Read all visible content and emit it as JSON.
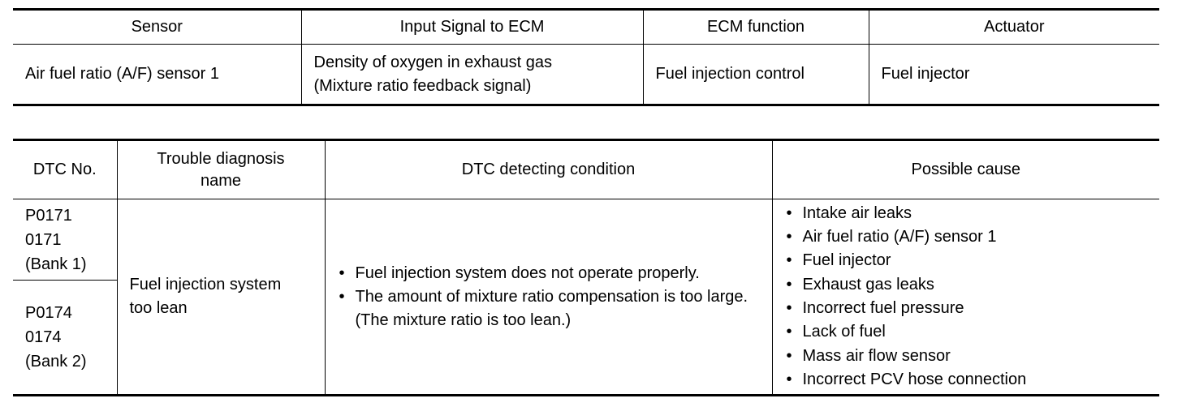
{
  "signal_table": {
    "headers": [
      "Sensor",
      "Input Signal to ECM",
      "ECM function",
      "Actuator"
    ],
    "row": {
      "sensor": "Air fuel ratio (A/F) sensor 1",
      "input_signal_line1": "Density of oxygen in exhaust gas",
      "input_signal_line2": "(Mixture ratio feedback signal)",
      "ecm_function": "Fuel injection control",
      "actuator": "Fuel injector"
    }
  },
  "dtc_table": {
    "headers": {
      "dtc_no": "DTC No.",
      "name_line1": "Trouble diagnosis",
      "name_line2": "name",
      "condition": "DTC detecting condition",
      "cause": "Possible cause"
    },
    "bank1": {
      "code1": "P0171",
      "code2": "0171",
      "bank": "(Bank 1)"
    },
    "bank2": {
      "code1": "P0174",
      "code2": "0174",
      "bank": "(Bank 2)"
    },
    "name_line1": "Fuel injection system",
    "name_line2": "too lean",
    "conditions": [
      "Fuel injection system does not operate properly.",
      "The amount of mixture ratio compensation is too large. (The mixture ratio is too lean.)"
    ],
    "causes": [
      "Intake air leaks",
      "Air fuel ratio (A/F) sensor 1",
      "Fuel injector",
      "Exhaust gas leaks",
      "Incorrect fuel pressure",
      "Lack of fuel",
      "Mass air flow sensor",
      "Incorrect PCV hose connection"
    ]
  }
}
